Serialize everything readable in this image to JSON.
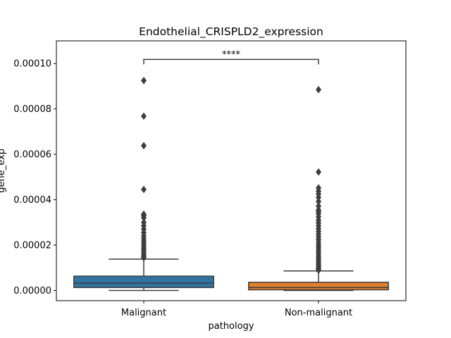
{
  "chart_data": {
    "type": "box",
    "title": "Endothelial_CRISPLD2_expression",
    "xlabel": "pathology",
    "ylabel": "gene_exp",
    "ylim": [
      -4.5e-06,
      0.00011
    ],
    "yticks": [
      0.0,
      2e-05,
      4e-05,
      6e-05,
      8e-05,
      0.0001
    ],
    "ytick_labels": [
      "0.00000",
      "0.00002",
      "0.00004",
      "0.00006",
      "0.00008",
      "0.00010"
    ],
    "categories": [
      "Malignant",
      "Non-malignant"
    ],
    "colors": [
      "#3274a1",
      "#e1812c"
    ],
    "grid": false,
    "boxes": [
      {
        "name": "Malignant",
        "whisker_low": 0.0,
        "q1": 1.3e-06,
        "median": 3.2e-06,
        "q3": 6.3e-06,
        "whisker_high": 1.38e-05,
        "outliers": [
          9.25e-05,
          7.68e-05,
          6.38e-05,
          4.45e-05,
          3.36e-05,
          3.3e-05,
          3.2e-05,
          3e-05,
          2.85e-05,
          2.7e-05,
          2.55e-05,
          2.4e-05,
          2.28e-05,
          2.16e-05,
          2.05e-05,
          1.95e-05,
          1.85e-05,
          1.76e-05,
          1.67e-05,
          1.58e-05,
          1.5e-05,
          1.44e-05
        ]
      },
      {
        "name": "Non-malignant",
        "whisker_low": 0.0,
        "q1": 3e-07,
        "median": 1.3e-06,
        "q3": 3.6e-06,
        "whisker_high": 8.6e-06,
        "outliers": [
          8.85e-05,
          5.22e-05,
          4.52e-05,
          4.38e-05,
          4.25e-05,
          4.1e-05,
          3.92e-05,
          3.72e-05,
          3.55e-05,
          3.47e-05,
          3.38e-05,
          3.25e-05,
          3.1e-05,
          2.98e-05,
          2.85e-05,
          2.72e-05,
          2.6e-05,
          2.48e-05,
          2.36e-05,
          2.24e-05,
          2.12e-05,
          2e-05,
          1.9e-05,
          1.8e-05,
          1.7e-05,
          1.6e-05,
          1.5e-05,
          1.4e-05,
          1.31e-05,
          1.22e-05,
          1.14e-05,
          1.06e-05,
          9.9e-06,
          9.3e-06,
          8.9e-06
        ]
      }
    ],
    "significance": {
      "label": "****",
      "between": [
        "Malignant",
        "Non-malignant"
      ],
      "y": 0.0001018
    }
  }
}
